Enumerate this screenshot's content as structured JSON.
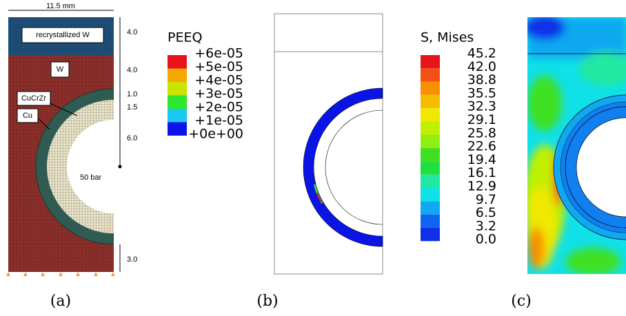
{
  "panel_a": {
    "width_label": "11.5 mm",
    "layer_labels": [
      "recrystallized W",
      "W",
      "CuCrZr",
      "Cu"
    ],
    "dimensions": [
      "4.0",
      "4.0",
      "1.0",
      "1.5",
      "6.0",
      "3.0"
    ],
    "pressure_label": "50 bar",
    "caption": "(a)"
  },
  "panel_b": {
    "legend_title": "PEEQ",
    "legend_labels": [
      "+6e-05",
      "+5e-05",
      "+4e-05",
      "+3e-05",
      "+2e-05",
      "+1e-05",
      "+0e+00"
    ],
    "legend_colors": [
      "#e8141c",
      "#f5a800",
      "#c8e400",
      "#2ee82e",
      "#18c8f0",
      "#0a14e6"
    ],
    "caption": "(b)"
  },
  "panel_c": {
    "legend_title": "S, Mises",
    "legend_labels": [
      "45.2",
      "42.0",
      "38.8",
      "35.5",
      "32.3",
      "29.1",
      "25.8",
      "22.6",
      "19.4",
      "16.1",
      "12.9",
      "9.7",
      "6.5",
      "3.2",
      "0.0"
    ],
    "legend_colors": [
      "#e8141c",
      "#f55014",
      "#f79000",
      "#f5bc00",
      "#f0e800",
      "#c0f000",
      "#90ee10",
      "#40e020",
      "#20e040",
      "#20e8a0",
      "#10e0e8",
      "#10a8f0",
      "#1064f0",
      "#1030e8"
    ],
    "caption": "(c)"
  }
}
